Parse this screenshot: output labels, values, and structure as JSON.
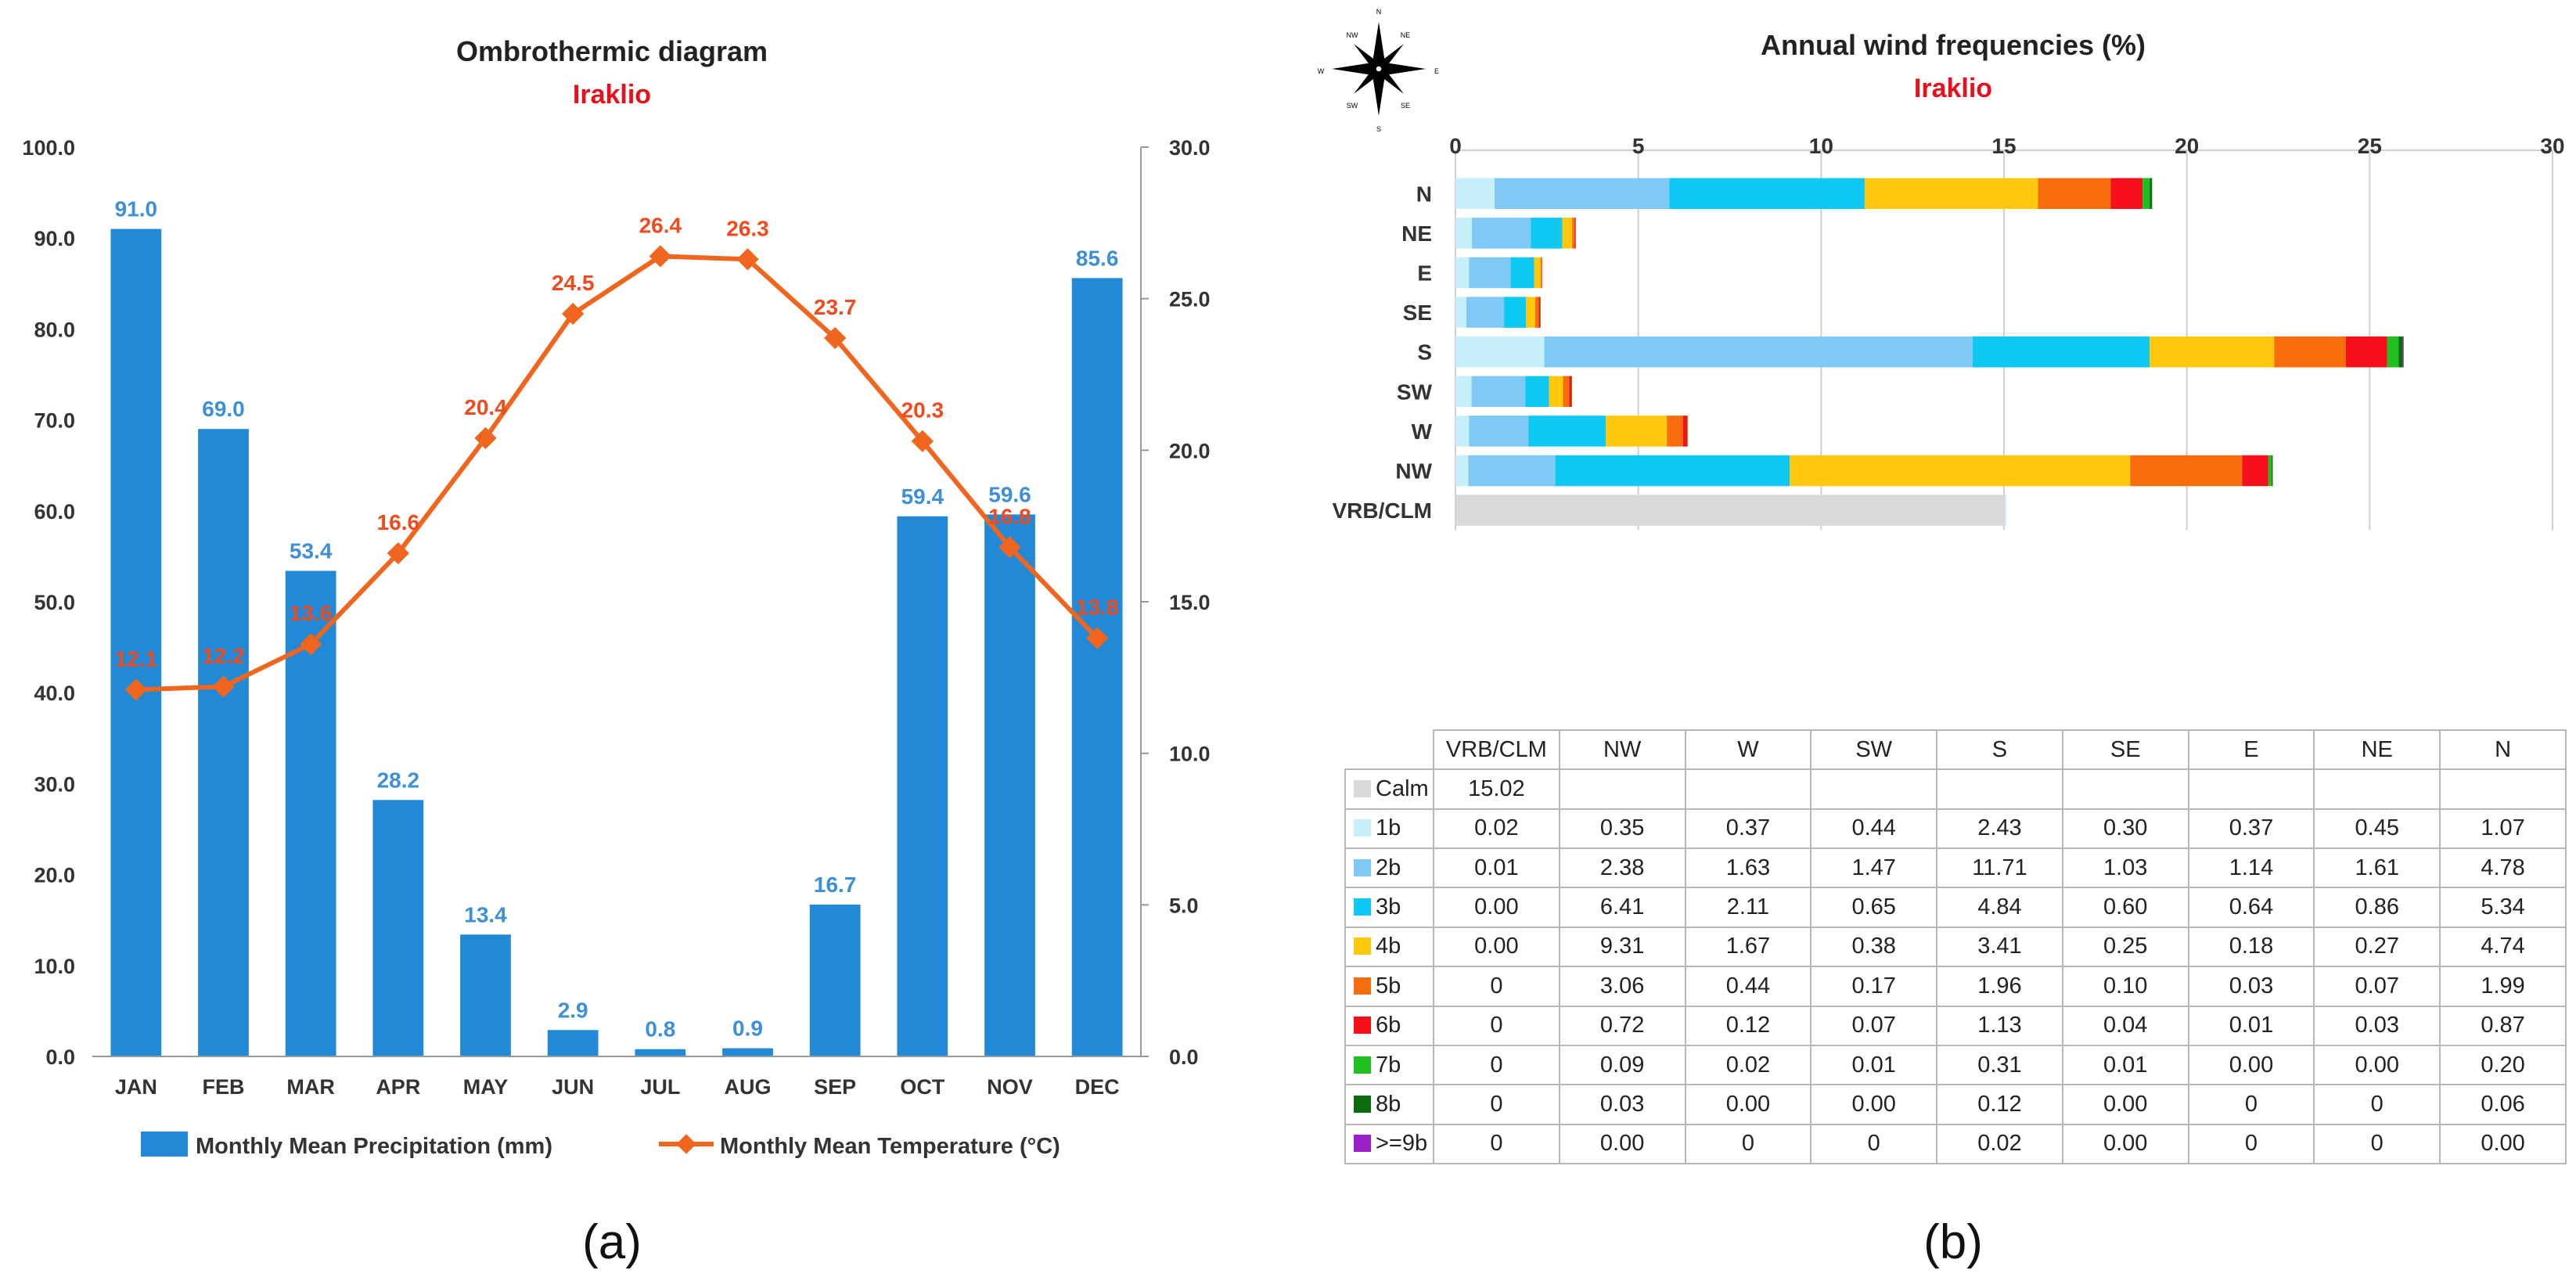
{
  "chart_data": [
    {
      "type": "bar",
      "title": "Ombrothermic diagram",
      "subtitle": "Iraklio",
      "categories": [
        "JAN",
        "FEB",
        "MAR",
        "APR",
        "MAY",
        "JUN",
        "JUL",
        "AUG",
        "SEP",
        "OCT",
        "NOV",
        "DEC"
      ],
      "series": [
        {
          "name": "Monthly Mean Precipitation (mm)",
          "type": "bar",
          "axis": "left",
          "color": "#2289d6",
          "values": [
            91.0,
            69.0,
            53.4,
            28.2,
            13.4,
            2.9,
            0.8,
            0.9,
            16.7,
            59.4,
            59.6,
            85.6
          ]
        },
        {
          "name": "Monthly Mean Temperature (°C)",
          "type": "line",
          "axis": "right",
          "color": "#f0661e",
          "values": [
            12.1,
            12.2,
            13.6,
            16.6,
            20.4,
            24.5,
            26.4,
            26.3,
            23.7,
            20.3,
            16.8,
            13.8
          ]
        }
      ],
      "ylim_left": [
        0,
        100
      ],
      "yticks_left": [
        "0.0",
        "10.0",
        "20.0",
        "30.0",
        "40.0",
        "50.0",
        "60.0",
        "70.0",
        "80.0",
        "90.0",
        "100.0"
      ],
      "ylim_right": [
        0,
        30
      ],
      "yticks_right": [
        "0.0",
        "5.0",
        "10.0",
        "15.0",
        "20.0",
        "25.0",
        "30.0"
      ],
      "bar_labels": [
        "91.0",
        "69.0",
        "53.4",
        "28.2",
        "13.4",
        "2.9",
        "0.8",
        "0.9",
        "16.7",
        "59.4",
        "59.6",
        "85.6"
      ],
      "line_labels": [
        "12.1",
        "12.2",
        "13.6",
        "16.6",
        "20.4",
        "24.5",
        "26.4",
        "26.3",
        "23.7",
        "20.3",
        "16.8",
        "13.8"
      ],
      "legend": "bottom",
      "panel_label": "(a)"
    },
    {
      "type": "bar",
      "orientation": "horizontal",
      "stacked": true,
      "title": "Annual wind frequencies (%)",
      "subtitle": "Iraklio",
      "categories": [
        "N",
        "NE",
        "E",
        "SE",
        "S",
        "SW",
        "W",
        "NW",
        "VRB/CLM"
      ],
      "xlim": [
        0,
        30
      ],
      "xticks": [
        "0",
        "5",
        "10",
        "15",
        "20",
        "25",
        "30"
      ],
      "series": [
        {
          "name": "Calm",
          "color": "#d9d9d9",
          "values": [
            0,
            0,
            0,
            0,
            0,
            0,
            0,
            0,
            15.02
          ]
        },
        {
          "name": "1b",
          "color": "#c6effa",
          "values": [
            1.07,
            0.45,
            0.37,
            0.3,
            2.43,
            0.44,
            0.37,
            0.35,
            0.02
          ]
        },
        {
          "name": "2b",
          "color": "#7fc9f5",
          "values": [
            4.78,
            1.61,
            1.14,
            1.03,
            11.71,
            1.47,
            1.63,
            2.38,
            0.01
          ]
        },
        {
          "name": "3b",
          "color": "#0cc8f2",
          "values": [
            5.34,
            0.86,
            0.64,
            0.6,
            4.84,
            0.65,
            2.11,
            6.41,
            0.0
          ]
        },
        {
          "name": "4b",
          "color": "#fec80f",
          "values": [
            4.74,
            0.27,
            0.18,
            0.25,
            3.41,
            0.38,
            1.67,
            9.31,
            0.0
          ]
        },
        {
          "name": "5b",
          "color": "#f96e0c",
          "values": [
            1.99,
            0.07,
            0.03,
            0.1,
            1.96,
            0.17,
            0.44,
            3.06,
            0
          ]
        },
        {
          "name": "6b",
          "color": "#f5101c",
          "values": [
            0.87,
            0.03,
            0.01,
            0.04,
            1.13,
            0.07,
            0.12,
            0.72,
            0
          ]
        },
        {
          "name": "7b",
          "color": "#1fc01f",
          "values": [
            0.2,
            0.0,
            0.0,
            0.01,
            0.31,
            0.01,
            0.02,
            0.09,
            0
          ]
        },
        {
          "name": "8b",
          "color": "#0c6b0c",
          "values": [
            0.06,
            0,
            0,
            0.0,
            0.12,
            0.0,
            0.0,
            0.03,
            0
          ]
        },
        {
          "name": ">=9b",
          "color": "#9b20c8",
          "values": [
            0.0,
            0,
            0,
            0.0,
            0.02,
            0,
            0,
            0.0,
            0
          ]
        }
      ],
      "compass_labels": [
        "N",
        "NE",
        "E",
        "SE",
        "S",
        "SW",
        "W",
        "NW"
      ],
      "table": {
        "columns": [
          "VRB/CLM",
          "NW",
          "W",
          "SW",
          "S",
          "SE",
          "E",
          "NE",
          "N"
        ],
        "rows": [
          {
            "label": "Calm",
            "color": "#d9d9d9",
            "values": [
              "15.02",
              "",
              "",
              "",
              "",
              "",
              "",
              "",
              ""
            ]
          },
          {
            "label": "1b",
            "color": "#c6effa",
            "values": [
              "0.02",
              "0.35",
              "0.37",
              "0.44",
              "2.43",
              "0.30",
              "0.37",
              "0.45",
              "1.07"
            ]
          },
          {
            "label": "2b",
            "color": "#7fc9f5",
            "values": [
              "0.01",
              "2.38",
              "1.63",
              "1.47",
              "11.71",
              "1.03",
              "1.14",
              "1.61",
              "4.78"
            ]
          },
          {
            "label": "3b",
            "color": "#0cc8f2",
            "values": [
              "0.00",
              "6.41",
              "2.11",
              "0.65",
              "4.84",
              "0.60",
              "0.64",
              "0.86",
              "5.34"
            ]
          },
          {
            "label": "4b",
            "color": "#fec80f",
            "values": [
              "0.00",
              "9.31",
              "1.67",
              "0.38",
              "3.41",
              "0.25",
              "0.18",
              "0.27",
              "4.74"
            ]
          },
          {
            "label": "5b",
            "color": "#f96e0c",
            "values": [
              "0",
              "3.06",
              "0.44",
              "0.17",
              "1.96",
              "0.10",
              "0.03",
              "0.07",
              "1.99"
            ]
          },
          {
            "label": "6b",
            "color": "#f5101c",
            "values": [
              "0",
              "0.72",
              "0.12",
              "0.07",
              "1.13",
              "0.04",
              "0.01",
              "0.03",
              "0.87"
            ]
          },
          {
            "label": "7b",
            "color": "#1fc01f",
            "values": [
              "0",
              "0.09",
              "0.02",
              "0.01",
              "0.31",
              "0.01",
              "0.00",
              "0.00",
              "0.20"
            ]
          },
          {
            "label": "8b",
            "color": "#0c6b0c",
            "values": [
              "0",
              "0.03",
              "0.00",
              "0.00",
              "0.12",
              "0.00",
              "0",
              "0",
              "0.06"
            ]
          },
          {
            "label": ">=9b",
            "color": "#9b20c8",
            "values": [
              "0",
              "0.00",
              "0",
              "0",
              "0.02",
              "0.00",
              "0",
              "0",
              "0.00"
            ]
          }
        ]
      },
      "panel_label": "(b)"
    }
  ]
}
